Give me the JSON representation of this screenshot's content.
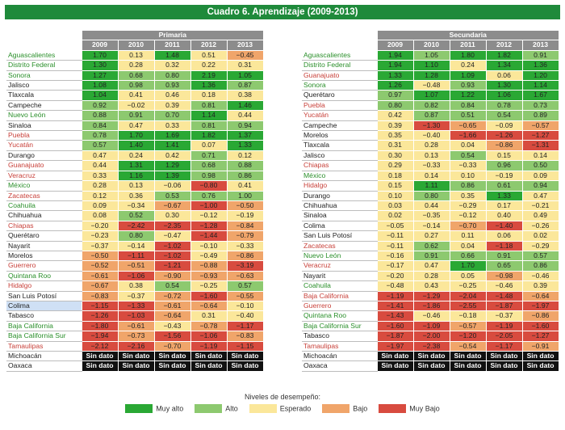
{
  "title": "Cuadro 6. Aprendizaje (2009-2013)",
  "colors": {
    "muy_alto": "#2aa834",
    "alto": "#8dc96f",
    "esperado": "#fbe79a",
    "bajo": "#f0a56a",
    "muy_bajo": "#d84b3f",
    "sin_dato": "#111111",
    "header": "#8c8c8c",
    "title_bar": "#1f8a3b"
  },
  "primaria": {
    "label": "Primaria",
    "years": [
      "2009",
      "2010",
      "2011",
      "2012",
      "2013"
    ],
    "rows": [
      {
        "state": "Aguascalientes",
        "sc": "g",
        "v": [
          "1.70",
          "0.13",
          "1.48",
          "0.51",
          "−0.45"
        ],
        "c": [
          "ma",
          "e",
          "ma",
          "e",
          "b"
        ]
      },
      {
        "state": "Distrito Federal",
        "sc": "g",
        "v": [
          "1.30",
          "0.28",
          "0.32",
          "0.22",
          "0.31"
        ],
        "c": [
          "ma",
          "e",
          "e",
          "e",
          "e"
        ]
      },
      {
        "state": "Sonora",
        "sc": "g",
        "v": [
          "1.27",
          "0.68",
          "0.80",
          "2.19",
          "1.05"
        ],
        "c": [
          "ma",
          "a",
          "a",
          "ma",
          "ma"
        ]
      },
      {
        "state": "Jalisco",
        "sc": "k",
        "v": [
          "1.08",
          "0.98",
          "0.93",
          "1.36",
          "0.87"
        ],
        "c": [
          "ma",
          "a",
          "a",
          "ma",
          "a"
        ]
      },
      {
        "state": "Tlaxcala",
        "sc": "k",
        "v": [
          "1.04",
          "0.41",
          "0.46",
          "0.18",
          "0.38"
        ],
        "c": [
          "ma",
          "e",
          "e",
          "e",
          "e"
        ]
      },
      {
        "state": "Campeche",
        "sc": "k",
        "v": [
          "0.92",
          "−0.02",
          "0.39",
          "0.81",
          "1.46"
        ],
        "c": [
          "a",
          "e",
          "e",
          "a",
          "ma"
        ]
      },
      {
        "state": "Nuevo León",
        "sc": "g",
        "v": [
          "0.88",
          "0.91",
          "0.70",
          "1.14",
          "0.44"
        ],
        "c": [
          "a",
          "a",
          "a",
          "ma",
          "e"
        ]
      },
      {
        "state": "Sinaloa",
        "sc": "k",
        "v": [
          "0.84",
          "0.47",
          "0.33",
          "0.81",
          "0.94"
        ],
        "c": [
          "a",
          "e",
          "e",
          "a",
          "a"
        ]
      },
      {
        "state": "Puebla",
        "sc": "r",
        "v": [
          "0.78",
          "1.70",
          "1.69",
          "1.82",
          "1.37"
        ],
        "c": [
          "a",
          "ma",
          "ma",
          "ma",
          "ma"
        ]
      },
      {
        "state": "Yucatán",
        "sc": "r",
        "v": [
          "0.57",
          "1.40",
          "1.41",
          "0.07",
          "1.33"
        ],
        "c": [
          "a",
          "ma",
          "ma",
          "e",
          "ma"
        ]
      },
      {
        "state": "Durango",
        "sc": "k",
        "v": [
          "0.47",
          "0.24",
          "0.42",
          "0.71",
          "0.12"
        ],
        "c": [
          "e",
          "e",
          "e",
          "a",
          "e"
        ]
      },
      {
        "state": "Guanajuato",
        "sc": "r",
        "v": [
          "0.44",
          "1.31",
          "1.29",
          "0.68",
          "0.88"
        ],
        "c": [
          "e",
          "ma",
          "ma",
          "a",
          "a"
        ]
      },
      {
        "state": "Veracruz",
        "sc": "r",
        "v": [
          "0.33",
          "1.16",
          "1.39",
          "0.98",
          "0.86"
        ],
        "c": [
          "e",
          "ma",
          "ma",
          "a",
          "a"
        ]
      },
      {
        "state": "México",
        "sc": "g",
        "v": [
          "0.28",
          "0.13",
          "−0.06",
          "−0.80",
          "0.41"
        ],
        "c": [
          "e",
          "e",
          "e",
          "mb",
          "e"
        ]
      },
      {
        "state": "Zacatecas",
        "sc": "r",
        "v": [
          "0.12",
          "0.36",
          "0.53",
          "0.76",
          "1.00"
        ],
        "c": [
          "e",
          "e",
          "a",
          "a",
          "a"
        ]
      },
      {
        "state": "Coahuila",
        "sc": "g",
        "v": [
          "0.09",
          "−0.34",
          "−0.67",
          "−1.00",
          "−0.50"
        ],
        "c": [
          "e",
          "e",
          "b",
          "mb",
          "b"
        ]
      },
      {
        "state": "Chihuahua",
        "sc": "k",
        "v": [
          "0.08",
          "0.52",
          "0.30",
          "−0.12",
          "−0.19"
        ],
        "c": [
          "e",
          "a",
          "e",
          "e",
          "e"
        ]
      },
      {
        "state": "Chiapas",
        "sc": "r",
        "v": [
          "−0.20",
          "−2.42",
          "−2.35",
          "−1.28",
          "−0.84"
        ],
        "c": [
          "e",
          "mb",
          "mb",
          "mb",
          "b"
        ]
      },
      {
        "state": "Querétaro",
        "sc": "k",
        "v": [
          "−0.23",
          "0.80",
          "−0.47",
          "−1.44",
          "−0.79"
        ],
        "c": [
          "e",
          "a",
          "e",
          "mb",
          "b"
        ]
      },
      {
        "state": "Nayarit",
        "sc": "k",
        "v": [
          "−0.37",
          "−0.14",
          "−1.02",
          "−0.10",
          "−0.33"
        ],
        "c": [
          "e",
          "e",
          "mb",
          "e",
          "e"
        ]
      },
      {
        "state": "Morelos",
        "sc": "k",
        "v": [
          "−0.50",
          "−1.11",
          "−1.02",
          "−0.49",
          "−0.86"
        ],
        "c": [
          "b",
          "mb",
          "mb",
          "e",
          "b"
        ]
      },
      {
        "state": "Guerrero",
        "sc": "r",
        "v": [
          "−0.52",
          "−0.51",
          "−1.21",
          "−0.88",
          "−3.19"
        ],
        "c": [
          "b",
          "b",
          "mb",
          "b",
          "mb"
        ]
      },
      {
        "state": "Quintana Roo",
        "sc": "g",
        "v": [
          "−0.61",
          "−1.06",
          "−0.90",
          "−0.93",
          "−0.63"
        ],
        "c": [
          "b",
          "mb",
          "b",
          "b",
          "b"
        ]
      },
      {
        "state": "Hidalgo",
        "sc": "r",
        "v": [
          "−0.67",
          "0.38",
          "0.54",
          "−0.25",
          "0.57"
        ],
        "c": [
          "b",
          "e",
          "a",
          "e",
          "a"
        ]
      },
      {
        "state": "San Luis Potosí",
        "sc": "k",
        "v": [
          "−0.83",
          "−0.37",
          "−0.72",
          "−1.60",
          "−0.55"
        ],
        "c": [
          "b",
          "e",
          "b",
          "mb",
          "b"
        ]
      },
      {
        "state": "Colima",
        "sc": "k",
        "hl": true,
        "v": [
          "−1.15",
          "−1.33",
          "−0.61",
          "−0.64",
          "−0.10"
        ],
        "c": [
          "mb",
          "mb",
          "b",
          "b",
          "e"
        ]
      },
      {
        "state": "Tabasco",
        "sc": "k",
        "v": [
          "−1.26",
          "−1.03",
          "−0.64",
          "0.31",
          "−0.40"
        ],
        "c": [
          "mb",
          "mb",
          "b",
          "e",
          "e"
        ]
      },
      {
        "state": "Baja California",
        "sc": "g",
        "v": [
          "−1.80",
          "−0.61",
          "−0.43",
          "−0.78",
          "−1.17"
        ],
        "c": [
          "mb",
          "b",
          "e",
          "b",
          "mb"
        ]
      },
      {
        "state": "Baja California Sur",
        "sc": "g",
        "v": [
          "−1.94",
          "−0.73",
          "−1.56",
          "−1.06",
          "−0.83"
        ],
        "c": [
          "mb",
          "b",
          "mb",
          "mb",
          "b"
        ]
      },
      {
        "state": "Tamaulipas",
        "sc": "r",
        "v": [
          "−2.12",
          "−2.16",
          "−0.70",
          "−1.19",
          "−1.15"
        ],
        "c": [
          "mb",
          "mb",
          "b",
          "mb",
          "mb"
        ]
      },
      {
        "state": "Michoacán",
        "sc": "k",
        "v": [
          "Sin dato",
          "Sin dato",
          "Sin dato",
          "Sin dato",
          "Sin dato"
        ],
        "c": [
          "sd",
          "sd",
          "sd",
          "sd",
          "sd"
        ]
      },
      {
        "state": "Oaxaca",
        "sc": "k",
        "v": [
          "Sin dato",
          "Sin dato",
          "Sin dato",
          "Sin dato",
          "Sin dato"
        ],
        "c": [
          "sd",
          "sd",
          "sd",
          "sd",
          "sd"
        ]
      }
    ]
  },
  "secundaria": {
    "label": "Secundaria",
    "years": [
      "2009",
      "2010",
      "2011",
      "2012",
      "2013"
    ],
    "rows": [
      {
        "state": "Aguascalientes",
        "sc": "g",
        "v": [
          "1.94",
          "1.05",
          "1.80",
          "1.82",
          "0.91"
        ],
        "c": [
          "ma",
          "a",
          "ma",
          "ma",
          "a"
        ]
      },
      {
        "state": "Distrito Federal",
        "sc": "g",
        "v": [
          "1.94",
          "1.10",
          "0.24",
          "1.34",
          "1.36"
        ],
        "c": [
          "ma",
          "ma",
          "e",
          "ma",
          "ma"
        ]
      },
      {
        "state": "Guanajuato",
        "sc": "r",
        "v": [
          "1.33",
          "1.28",
          "1.09",
          "0.06",
          "1.20"
        ],
        "c": [
          "ma",
          "ma",
          "ma",
          "e",
          "ma"
        ]
      },
      {
        "state": "Sonora",
        "sc": "g",
        "v": [
          "1.26",
          "−0.48",
          "0.93",
          "1.30",
          "1.14"
        ],
        "c": [
          "ma",
          "e",
          "a",
          "ma",
          "ma"
        ]
      },
      {
        "state": "Querétaro",
        "sc": "k",
        "v": [
          "0.97",
          "1.07",
          "1.22",
          "1.06",
          "1.67"
        ],
        "c": [
          "a",
          "ma",
          "ma",
          "ma",
          "ma"
        ]
      },
      {
        "state": "Puebla",
        "sc": "r",
        "v": [
          "0.80",
          "0.82",
          "0.84",
          "0.78",
          "0.73"
        ],
        "c": [
          "a",
          "a",
          "a",
          "a",
          "a"
        ]
      },
      {
        "state": "Yucatán",
        "sc": "r",
        "v": [
          "0.42",
          "0.87",
          "0.51",
          "0.54",
          "0.89"
        ],
        "c": [
          "e",
          "a",
          "a",
          "a",
          "a"
        ]
      },
      {
        "state": "Campeche",
        "sc": "k",
        "v": [
          "0.39",
          "−1.30",
          "−0.65",
          "−0.09",
          "−0.57"
        ],
        "c": [
          "e",
          "mb",
          "b",
          "e",
          "b"
        ]
      },
      {
        "state": "Morelos",
        "sc": "k",
        "v": [
          "0.35",
          "−0.40",
          "−1.66",
          "−1.26",
          "−1.27"
        ],
        "c": [
          "e",
          "e",
          "mb",
          "mb",
          "mb"
        ]
      },
      {
        "state": "Tlaxcala",
        "sc": "k",
        "v": [
          "0.31",
          "0.28",
          "0.04",
          "−0.86",
          "−1.31"
        ],
        "c": [
          "e",
          "e",
          "e",
          "b",
          "mb"
        ]
      },
      {
        "state": "Jalisco",
        "sc": "k",
        "v": [
          "0.30",
          "0.13",
          "0.54",
          "0.15",
          "0.14"
        ],
        "c": [
          "e",
          "e",
          "a",
          "e",
          "e"
        ]
      },
      {
        "state": "Chiapas",
        "sc": "r",
        "v": [
          "0.29",
          "−0.33",
          "−0.33",
          "0.96",
          "0.50"
        ],
        "c": [
          "e",
          "e",
          "e",
          "a",
          "a"
        ]
      },
      {
        "state": "México",
        "sc": "g",
        "v": [
          "0.18",
          "0.14",
          "0.10",
          "−0.19",
          "0.09"
        ],
        "c": [
          "e",
          "e",
          "e",
          "e",
          "e"
        ]
      },
      {
        "state": "Hidalgo",
        "sc": "r",
        "v": [
          "0.15",
          "1.11",
          "0.86",
          "0.61",
          "0.94"
        ],
        "c": [
          "e",
          "ma",
          "a",
          "a",
          "a"
        ]
      },
      {
        "state": "Durango",
        "sc": "k",
        "v": [
          "0.10",
          "0.80",
          "0.35",
          "1.33",
          "0.47"
        ],
        "c": [
          "e",
          "a",
          "e",
          "ma",
          "e"
        ]
      },
      {
        "state": "Chihuahua",
        "sc": "k",
        "v": [
          "0.03",
          "0.44",
          "−0.29",
          "0.17",
          "−0.21"
        ],
        "c": [
          "e",
          "e",
          "e",
          "e",
          "e"
        ]
      },
      {
        "state": "Sinaloa",
        "sc": "k",
        "v": [
          "0.02",
          "−0.35",
          "−0.12",
          "0.40",
          "0.49"
        ],
        "c": [
          "e",
          "e",
          "e",
          "e",
          "e"
        ]
      },
      {
        "state": "Colima",
        "sc": "k",
        "v": [
          "−0.05",
          "−0.14",
          "−0.70",
          "−1.40",
          "−0.26"
        ],
        "c": [
          "e",
          "e",
          "b",
          "mb",
          "e"
        ]
      },
      {
        "state": "San Luis Potosí",
        "sc": "k",
        "v": [
          "−0.11",
          "0.27",
          "0.11",
          "0.06",
          "0.02"
        ],
        "c": [
          "e",
          "e",
          "e",
          "e",
          "e"
        ]
      },
      {
        "state": "Zacatecas",
        "sc": "r",
        "v": [
          "−0.11",
          "0.62",
          "0.04",
          "−1.18",
          "−0.29"
        ],
        "c": [
          "e",
          "a",
          "e",
          "mb",
          "e"
        ]
      },
      {
        "state": "Nuevo León",
        "sc": "g",
        "v": [
          "−0.16",
          "0.91",
          "0.66",
          "0.91",
          "0.57"
        ],
        "c": [
          "e",
          "a",
          "a",
          "a",
          "a"
        ]
      },
      {
        "state": "Veracruz",
        "sc": "r",
        "v": [
          "−0.17",
          "0.47",
          "1.70",
          "0.65",
          "0.86"
        ],
        "c": [
          "e",
          "e",
          "ma",
          "a",
          "a"
        ]
      },
      {
        "state": "Nayarit",
        "sc": "k",
        "v": [
          "−0.20",
          "0.28",
          "0.05",
          "−0.98",
          "−0.46"
        ],
        "c": [
          "e",
          "e",
          "e",
          "b",
          "e"
        ]
      },
      {
        "state": "Coahuila",
        "sc": "g",
        "v": [
          "−0.48",
          "0.43",
          "−0.25",
          "−0.46",
          "0.39"
        ],
        "c": [
          "e",
          "e",
          "e",
          "e",
          "e"
        ]
      },
      {
        "state": "Baja California",
        "sc": "r",
        "v": [
          "−1.19",
          "−1.29",
          "−2.04",
          "−1.48",
          "−0.64"
        ],
        "c": [
          "mb",
          "mb",
          "mb",
          "mb",
          "b"
        ]
      },
      {
        "state": "Guerrero",
        "sc": "r",
        "v": [
          "−1.41",
          "−1.86",
          "−2.55",
          "−1.87",
          "−1.97"
        ],
        "c": [
          "mb",
          "mb",
          "mb",
          "mb",
          "mb"
        ]
      },
      {
        "state": "Quintana Roo",
        "sc": "g",
        "v": [
          "−1.43",
          "−0.46",
          "−0.18",
          "−0.37",
          "−0.86"
        ],
        "c": [
          "mb",
          "e",
          "e",
          "e",
          "b"
        ]
      },
      {
        "state": "Baja California Sur",
        "sc": "g",
        "v": [
          "−1.60",
          "−1.09",
          "−0.57",
          "−1.19",
          "−1.60"
        ],
        "c": [
          "mb",
          "mb",
          "b",
          "mb",
          "mb"
        ]
      },
      {
        "state": "Tabasco",
        "sc": "k",
        "v": [
          "−1.87",
          "−2.00",
          "−1.20",
          "−2.05",
          "−1.27"
        ],
        "c": [
          "mb",
          "mb",
          "mb",
          "mb",
          "mb"
        ]
      },
      {
        "state": "Tamaulipas",
        "sc": "r",
        "v": [
          "−1.97",
          "−2.38",
          "−0.54",
          "−1.17",
          "−0.91"
        ],
        "c": [
          "mb",
          "mb",
          "b",
          "mb",
          "b"
        ]
      },
      {
        "state": "Michoacán",
        "sc": "k",
        "v": [
          "Sin dato",
          "Sin dato",
          "Sin dato",
          "Sin dato",
          "Sin dato"
        ],
        "c": [
          "sd",
          "sd",
          "sd",
          "sd",
          "sd"
        ]
      },
      {
        "state": "Oaxaca",
        "sc": "k",
        "v": [
          "Sin dato",
          "Sin dato",
          "Sin dato",
          "Sin dato",
          "Sin dato"
        ],
        "c": [
          "sd",
          "sd",
          "sd",
          "sd",
          "sd"
        ]
      }
    ]
  },
  "legend": {
    "title": "Niveles de desempeño:",
    "items": [
      {
        "label": "Muy alto",
        "color": "#2aa834"
      },
      {
        "label": "Alto",
        "color": "#8dc96f"
      },
      {
        "label": "Esperado",
        "color": "#fbe79a"
      },
      {
        "label": "Bajo",
        "color": "#f0a56a"
      },
      {
        "label": "Muy Bajo",
        "color": "#d84b3f"
      }
    ]
  }
}
